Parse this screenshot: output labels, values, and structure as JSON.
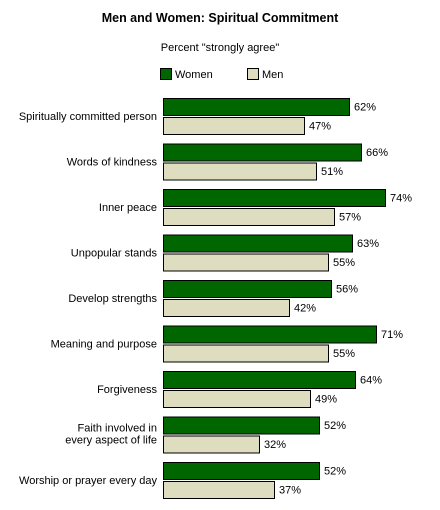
{
  "chart_data": {
    "type": "bar",
    "orientation": "horizontal",
    "title": "Men and Women: Spiritual Commitment",
    "subtitle": "Percent \"strongly agree\"",
    "categories": [
      [
        "Spiritually committed person"
      ],
      [
        "Words of kindness"
      ],
      [
        "Inner peace"
      ],
      [
        "Unpopular stands"
      ],
      [
        "Develop strengths"
      ],
      [
        "Meaning and purpose"
      ],
      [
        "Forgiveness"
      ],
      [
        "Faith involved in",
        "every aspect of life"
      ],
      [
        "Worship or prayer every day"
      ]
    ],
    "series": [
      {
        "name": "Women",
        "color": "#006600",
        "values": [
          62,
          66,
          74,
          63,
          56,
          71,
          64,
          52,
          52
        ]
      },
      {
        "name": "Men",
        "color": "#deddbf",
        "values": [
          47,
          51,
          57,
          55,
          42,
          55,
          49,
          32,
          37
        ]
      }
    ],
    "value_suffix": "%",
    "xlim": [
      0,
      80
    ],
    "grid": false,
    "legend_position": "top"
  }
}
